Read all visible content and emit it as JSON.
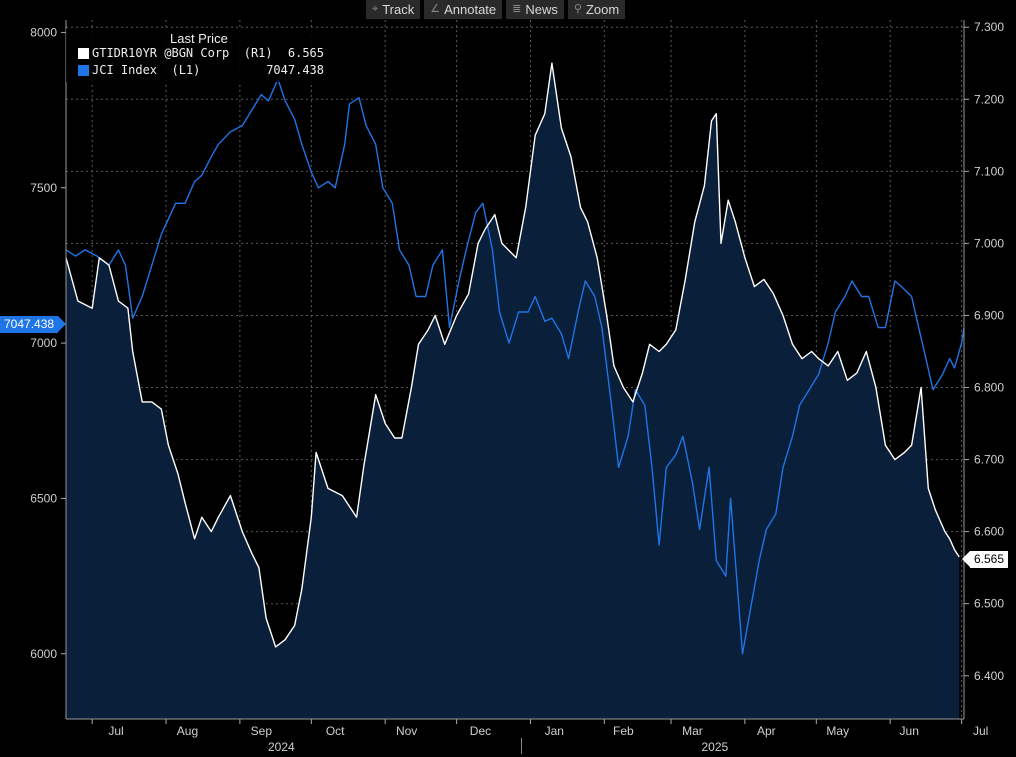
{
  "toolbar": {
    "buttons": [
      {
        "label": "Track",
        "icon": "crosshair-icon",
        "glyph": "⌖"
      },
      {
        "label": "Annotate",
        "icon": "pencil-icon",
        "glyph": "∠"
      },
      {
        "label": "News",
        "icon": "news-icon",
        "glyph": "≣"
      },
      {
        "label": "Zoom",
        "icon": "magnifier-icon",
        "glyph": "⚲"
      }
    ]
  },
  "legend": {
    "header": "Last Price",
    "rows": [
      {
        "name": "GTIDR10YR @BGN Corp  (R1)",
        "value": "6.565",
        "color": "#ffffff"
      },
      {
        "name": "JCI Index  (L1)",
        "value": "7047.438",
        "color": "#1f74e6"
      }
    ]
  },
  "tags": {
    "left": "7047.438",
    "right": "6.565"
  },
  "chart_data": {
    "type": "line",
    "x_range": [
      "2024-06-20",
      "2025-07-02"
    ],
    "x_month_labels": [
      "Jul",
      "Aug",
      "Sep",
      "Oct",
      "Nov",
      "Dec",
      "Jan",
      "Feb",
      "Mar",
      "Apr",
      "May",
      "Jun",
      "Jul"
    ],
    "x_year_labels": [
      "2024",
      "2025"
    ],
    "left_axis": {
      "min": 5790,
      "max": 8040,
      "ticks": [
        6000,
        6500,
        7000,
        7500,
        8000
      ]
    },
    "right_axis": {
      "min": 6.34,
      "max": 7.31,
      "ticks": [
        "6.400",
        "6.500",
        "6.600",
        "6.700",
        "6.800",
        "6.900",
        "7.000",
        "7.100",
        "7.200",
        "7.300"
      ]
    },
    "grid": true,
    "legend_position": "top-left",
    "series": [
      {
        "name": "GTIDR10YR @BGN Corp",
        "axis": "right",
        "color": "#ffffff",
        "fill": "#0a1f3a",
        "points": [
          [
            "2024-06-20",
            6.98
          ],
          [
            "2024-06-25",
            6.92
          ],
          [
            "2024-07-01",
            6.91
          ],
          [
            "2024-07-04",
            6.98
          ],
          [
            "2024-07-08",
            6.97
          ],
          [
            "2024-07-12",
            6.92
          ],
          [
            "2024-07-16",
            6.91
          ],
          [
            "2024-07-18",
            6.85
          ],
          [
            "2024-07-22",
            6.78
          ],
          [
            "2024-07-26",
            6.78
          ],
          [
            "2024-07-30",
            6.77
          ],
          [
            "2024-08-02",
            6.72
          ],
          [
            "2024-08-06",
            6.68
          ],
          [
            "2024-08-09",
            6.64
          ],
          [
            "2024-08-13",
            6.59
          ],
          [
            "2024-08-16",
            6.62
          ],
          [
            "2024-08-20",
            6.6
          ],
          [
            "2024-08-23",
            6.62
          ],
          [
            "2024-08-28",
            6.65
          ],
          [
            "2024-09-02",
            6.6
          ],
          [
            "2024-09-06",
            6.57
          ],
          [
            "2024-09-09",
            6.55
          ],
          [
            "2024-09-12",
            6.48
          ],
          [
            "2024-09-16",
            6.44
          ],
          [
            "2024-09-20",
            6.45
          ],
          [
            "2024-09-24",
            6.47
          ],
          [
            "2024-09-27",
            6.52
          ],
          [
            "2024-10-01",
            6.62
          ],
          [
            "2024-10-03",
            6.71
          ],
          [
            "2024-10-08",
            6.66
          ],
          [
            "2024-10-14",
            6.65
          ],
          [
            "2024-10-20",
            6.62
          ],
          [
            "2024-10-23",
            6.69
          ],
          [
            "2024-10-28",
            6.79
          ],
          [
            "2024-11-01",
            6.75
          ],
          [
            "2024-11-05",
            6.73
          ],
          [
            "2024-11-08",
            6.73
          ],
          [
            "2024-11-12",
            6.8
          ],
          [
            "2024-11-15",
            6.86
          ],
          [
            "2024-11-19",
            6.88
          ],
          [
            "2024-11-22",
            6.9
          ],
          [
            "2024-11-26",
            6.86
          ],
          [
            "2024-12-01",
            6.9
          ],
          [
            "2024-12-06",
            6.93
          ],
          [
            "2024-12-10",
            7.0
          ],
          [
            "2024-12-13",
            7.02
          ],
          [
            "2024-12-17",
            7.04
          ],
          [
            "2024-12-20",
            7.0
          ],
          [
            "2024-12-26",
            6.98
          ],
          [
            "2024-12-30",
            7.05
          ],
          [
            "2025-01-03",
            7.15
          ],
          [
            "2025-01-07",
            7.18
          ],
          [
            "2025-01-10",
            7.25
          ],
          [
            "2025-01-14",
            7.16
          ],
          [
            "2025-01-18",
            7.12
          ],
          [
            "2025-01-22",
            7.05
          ],
          [
            "2025-01-25",
            7.03
          ],
          [
            "2025-01-29",
            6.98
          ],
          [
            "2025-02-02",
            6.9
          ],
          [
            "2025-02-05",
            6.83
          ],
          [
            "2025-02-09",
            6.8
          ],
          [
            "2025-02-13",
            6.78
          ],
          [
            "2025-02-17",
            6.82
          ],
          [
            "2025-02-20",
            6.86
          ],
          [
            "2025-02-24",
            6.85
          ],
          [
            "2025-02-27",
            6.86
          ],
          [
            "2025-03-03",
            6.88
          ],
          [
            "2025-03-07",
            6.95
          ],
          [
            "2025-03-11",
            7.03
          ],
          [
            "2025-03-15",
            7.08
          ],
          [
            "2025-03-18",
            7.17
          ],
          [
            "2025-03-20",
            7.18
          ],
          [
            "2025-03-22",
            7.0
          ],
          [
            "2025-03-25",
            7.06
          ],
          [
            "2025-03-28",
            7.03
          ],
          [
            "2025-04-01",
            6.98
          ],
          [
            "2025-04-05",
            6.94
          ],
          [
            "2025-04-09",
            6.95
          ],
          [
            "2025-04-13",
            6.93
          ],
          [
            "2025-04-17",
            6.9
          ],
          [
            "2025-04-21",
            6.86
          ],
          [
            "2025-04-25",
            6.84
          ],
          [
            "2025-04-29",
            6.85
          ],
          [
            "2025-05-02",
            6.84
          ],
          [
            "2025-05-06",
            6.83
          ],
          [
            "2025-05-10",
            6.85
          ],
          [
            "2025-05-14",
            6.81
          ],
          [
            "2025-05-18",
            6.82
          ],
          [
            "2025-05-22",
            6.85
          ],
          [
            "2025-05-26",
            6.8
          ],
          [
            "2025-05-30",
            6.72
          ],
          [
            "2025-06-03",
            6.7
          ],
          [
            "2025-06-07",
            6.71
          ],
          [
            "2025-06-10",
            6.72
          ],
          [
            "2025-06-14",
            6.8
          ],
          [
            "2025-06-17",
            6.66
          ],
          [
            "2025-06-20",
            6.63
          ],
          [
            "2025-06-24",
            6.6
          ],
          [
            "2025-06-26",
            6.59
          ],
          [
            "2025-06-28",
            6.575
          ],
          [
            "2025-06-30",
            6.565
          ]
        ]
      },
      {
        "name": "JCI Index",
        "axis": "left",
        "color": "#1f74e6",
        "points": [
          [
            "2024-06-20",
            7300
          ],
          [
            "2024-06-24",
            7280
          ],
          [
            "2024-06-28",
            7300
          ],
          [
            "2024-07-03",
            7280
          ],
          [
            "2024-07-08",
            7250
          ],
          [
            "2024-07-12",
            7300
          ],
          [
            "2024-07-15",
            7250
          ],
          [
            "2024-07-18",
            7080
          ],
          [
            "2024-07-22",
            7150
          ],
          [
            "2024-07-26",
            7250
          ],
          [
            "2024-07-30",
            7350
          ],
          [
            "2024-08-05",
            7450
          ],
          [
            "2024-08-09",
            7450
          ],
          [
            "2024-08-13",
            7520
          ],
          [
            "2024-08-16",
            7540
          ],
          [
            "2024-08-20",
            7600
          ],
          [
            "2024-08-23",
            7640
          ],
          [
            "2024-08-28",
            7680
          ],
          [
            "2024-09-02",
            7700
          ],
          [
            "2024-09-06",
            7750
          ],
          [
            "2024-09-10",
            7800
          ],
          [
            "2024-09-13",
            7780
          ],
          [
            "2024-09-17",
            7850
          ],
          [
            "2024-09-20",
            7780
          ],
          [
            "2024-09-24",
            7720
          ],
          [
            "2024-09-27",
            7640
          ],
          [
            "2024-10-01",
            7550
          ],
          [
            "2024-10-04",
            7500
          ],
          [
            "2024-10-08",
            7520
          ],
          [
            "2024-10-11",
            7500
          ],
          [
            "2024-10-15",
            7640
          ],
          [
            "2024-10-17",
            7770
          ],
          [
            "2024-10-21",
            7790
          ],
          [
            "2024-10-24",
            7700
          ],
          [
            "2024-10-28",
            7640
          ],
          [
            "2024-10-31",
            7500
          ],
          [
            "2024-11-04",
            7450
          ],
          [
            "2024-11-07",
            7300
          ],
          [
            "2024-11-11",
            7250
          ],
          [
            "2024-11-14",
            7150
          ],
          [
            "2024-11-18",
            7150
          ],
          [
            "2024-11-21",
            7250
          ],
          [
            "2024-11-25",
            7300
          ],
          [
            "2024-11-28",
            7050
          ],
          [
            "2024-12-02",
            7200
          ],
          [
            "2024-12-05",
            7300
          ],
          [
            "2024-12-09",
            7420
          ],
          [
            "2024-12-12",
            7450
          ],
          [
            "2024-12-16",
            7300
          ],
          [
            "2024-12-19",
            7100
          ],
          [
            "2024-12-23",
            7000
          ],
          [
            "2024-12-27",
            7100
          ],
          [
            "2024-12-31",
            7100
          ],
          [
            "2025-01-03",
            7150
          ],
          [
            "2025-01-07",
            7070
          ],
          [
            "2025-01-10",
            7080
          ],
          [
            "2025-01-14",
            7030
          ],
          [
            "2025-01-17",
            6950
          ],
          [
            "2025-01-21",
            7100
          ],
          [
            "2025-01-24",
            7200
          ],
          [
            "2025-01-28",
            7150
          ],
          [
            "2025-01-31",
            7050
          ],
          [
            "2025-02-04",
            6800
          ],
          [
            "2025-02-07",
            6600
          ],
          [
            "2025-02-11",
            6700
          ],
          [
            "2025-02-14",
            6850
          ],
          [
            "2025-02-18",
            6800
          ],
          [
            "2025-02-21",
            6600
          ],
          [
            "2025-02-24",
            6350
          ],
          [
            "2025-02-27",
            6600
          ],
          [
            "2025-03-03",
            6640
          ],
          [
            "2025-03-06",
            6700
          ],
          [
            "2025-03-10",
            6550
          ],
          [
            "2025-03-13",
            6400
          ],
          [
            "2025-03-17",
            6600
          ],
          [
            "2025-03-20",
            6300
          ],
          [
            "2025-03-24",
            6250
          ],
          [
            "2025-03-26",
            6500
          ],
          [
            "2025-03-31",
            6000
          ],
          [
            "2025-04-07",
            6300
          ],
          [
            "2025-04-10",
            6400
          ],
          [
            "2025-04-14",
            6450
          ],
          [
            "2025-04-17",
            6600
          ],
          [
            "2025-04-21",
            6700
          ],
          [
            "2025-04-24",
            6800
          ],
          [
            "2025-04-28",
            6850
          ],
          [
            "2025-05-02",
            6900
          ],
          [
            "2025-05-06",
            7000
          ],
          [
            "2025-05-09",
            7100
          ],
          [
            "2025-05-13",
            7150
          ],
          [
            "2025-05-16",
            7200
          ],
          [
            "2025-05-20",
            7150
          ],
          [
            "2025-05-23",
            7150
          ],
          [
            "2025-05-27",
            7050
          ],
          [
            "2025-05-30",
            7050
          ],
          [
            "2025-06-03",
            7200
          ],
          [
            "2025-06-06",
            7180
          ],
          [
            "2025-06-10",
            7150
          ],
          [
            "2025-06-13",
            7050
          ],
          [
            "2025-06-16",
            6950
          ],
          [
            "2025-06-19",
            6850
          ],
          [
            "2025-06-23",
            6900
          ],
          [
            "2025-06-26",
            6950
          ],
          [
            "2025-06-28",
            6920
          ],
          [
            "2025-07-01",
            7000
          ],
          [
            "2025-07-02",
            7047.438
          ]
        ]
      }
    ]
  }
}
